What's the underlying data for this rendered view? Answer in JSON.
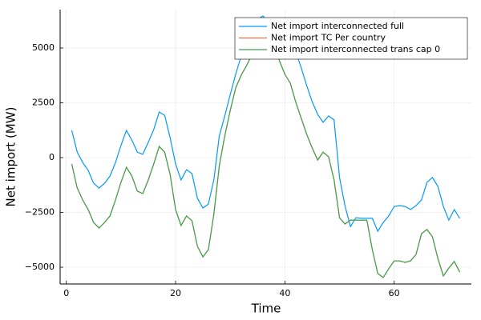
{
  "chart_data": {
    "type": "line",
    "xlabel": "Time",
    "ylabel": "Net import (MW)",
    "x": [
      1,
      2,
      3,
      4,
      5,
      6,
      7,
      8,
      9,
      10,
      11,
      12,
      13,
      14,
      15,
      16,
      17,
      18,
      19,
      20,
      21,
      22,
      23,
      24,
      25,
      26,
      27,
      28,
      29,
      30,
      31,
      32,
      33,
      34,
      35,
      36,
      37,
      38,
      39,
      40,
      41,
      42,
      43,
      44,
      45,
      46,
      47,
      48,
      49,
      50,
      51,
      52,
      53,
      54,
      55,
      56,
      57,
      58,
      59,
      60,
      61,
      62,
      63,
      64,
      65,
      66,
      67,
      68,
      69,
      70,
      71,
      72
    ],
    "series": [
      {
        "name": "Net import interconnected full",
        "color": "#009af9",
        "values": [
          1240,
          250,
          -220,
          -580,
          -1170,
          -1390,
          -1170,
          -840,
          -220,
          550,
          1240,
          800,
          250,
          150,
          700,
          1280,
          2080,
          1930,
          910,
          -290,
          -1020,
          -550,
          -730,
          -1860,
          -2300,
          -2120,
          -1020,
          990,
          1900,
          2880,
          3800,
          4640,
          5440,
          5910,
          6310,
          6460,
          6170,
          5730,
          5360,
          5000,
          5290,
          4820,
          4090,
          3280,
          2550,
          1970,
          1610,
          1900,
          1720,
          -900,
          -2200,
          -3150,
          -2740,
          -2770,
          -2770,
          -2770,
          -3360,
          -2960,
          -2660,
          -2230,
          -2190,
          -2230,
          -2370,
          -2190,
          -1930,
          -1130,
          -910,
          -1310,
          -2230,
          -2850,
          -2370,
          -2770
        ]
      },
      {
        "name": "Net import TC Per country",
        "color": "#e26f46",
        "values": [
          -290,
          -1390,
          -1930,
          -2370,
          -2960,
          -3210,
          -2960,
          -2660,
          -1930,
          -1130,
          -440,
          -840,
          -1530,
          -1640,
          -1020,
          -290,
          510,
          250,
          -770,
          -2370,
          -3100,
          -2660,
          -2880,
          -4050,
          -4530,
          -4200,
          -2590,
          -370,
          990,
          2150,
          3180,
          3760,
          4200,
          4710,
          5440,
          5730,
          5550,
          5000,
          4420,
          3800,
          3390,
          2520,
          1790,
          1060,
          440,
          -110,
          250,
          40,
          -1020,
          -2740,
          -3030,
          -2850,
          -2850,
          -2850,
          -2850,
          -4200,
          -5290,
          -5470,
          -5070,
          -4710,
          -4710,
          -4780,
          -4710,
          -4420,
          -3470,
          -3280,
          -3610,
          -4600,
          -5400,
          -5040,
          -4740,
          -5220
        ]
      },
      {
        "name": "Net import interconnected trans cap 0",
        "color": "#3da44d",
        "values": [
          -290,
          -1390,
          -1930,
          -2370,
          -2960,
          -3210,
          -2960,
          -2660,
          -1930,
          -1130,
          -440,
          -840,
          -1530,
          -1640,
          -1020,
          -290,
          510,
          250,
          -770,
          -2370,
          -3100,
          -2660,
          -2880,
          -4050,
          -4530,
          -4200,
          -2590,
          -370,
          990,
          2150,
          3180,
          3760,
          4200,
          4710,
          5440,
          5730,
          5550,
          5000,
          4420,
          3800,
          3390,
          2520,
          1790,
          1060,
          440,
          -110,
          250,
          40,
          -1020,
          -2740,
          -3030,
          -2850,
          -2850,
          -2850,
          -2850,
          -4200,
          -5290,
          -5470,
          -5070,
          -4710,
          -4710,
          -4780,
          -4710,
          -4420,
          -3470,
          -3280,
          -3610,
          -4600,
          -5400,
          -5040,
          -4740,
          -5220
        ]
      }
    ],
    "xlim": [
      -1.13,
      74.13
    ],
    "xticks": [
      0,
      20,
      40,
      60
    ],
    "ylim": [
      -5766,
      6752
    ],
    "yticks": [
      {
        "value": -5000,
        "label": "−5000"
      },
      {
        "value": -2500,
        "label": "−2500"
      },
      0,
      2500,
      5000
    ],
    "grid": true,
    "legend": "top-right"
  }
}
